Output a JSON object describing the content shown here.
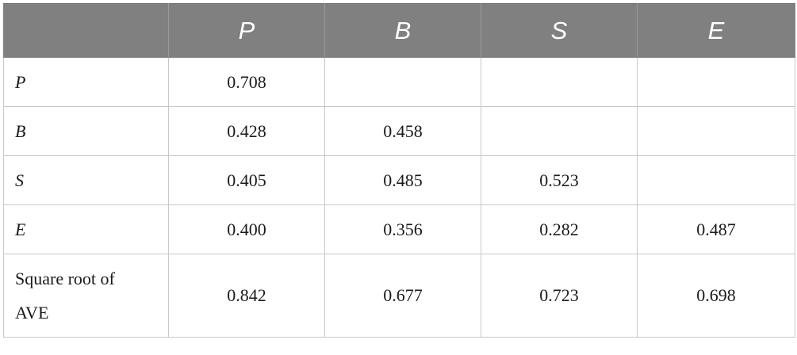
{
  "table": {
    "columns": [
      "",
      "P",
      "B",
      "S",
      "E"
    ],
    "rows": [
      {
        "label": "P",
        "cells": [
          "0.708",
          "",
          "",
          ""
        ]
      },
      {
        "label": "B",
        "cells": [
          "0.428",
          "0.458",
          "",
          ""
        ]
      },
      {
        "label": "S",
        "cells": [
          "0.405",
          "0.485",
          "0.523",
          ""
        ]
      },
      {
        "label": "E",
        "cells": [
          "0.400",
          "0.356",
          "0.282",
          "0.487"
        ]
      },
      {
        "label_line1": "Square root of",
        "label_line2": "AVE",
        "cells": [
          "0.842",
          "0.677",
          "0.723",
          "0.698"
        ]
      }
    ]
  }
}
